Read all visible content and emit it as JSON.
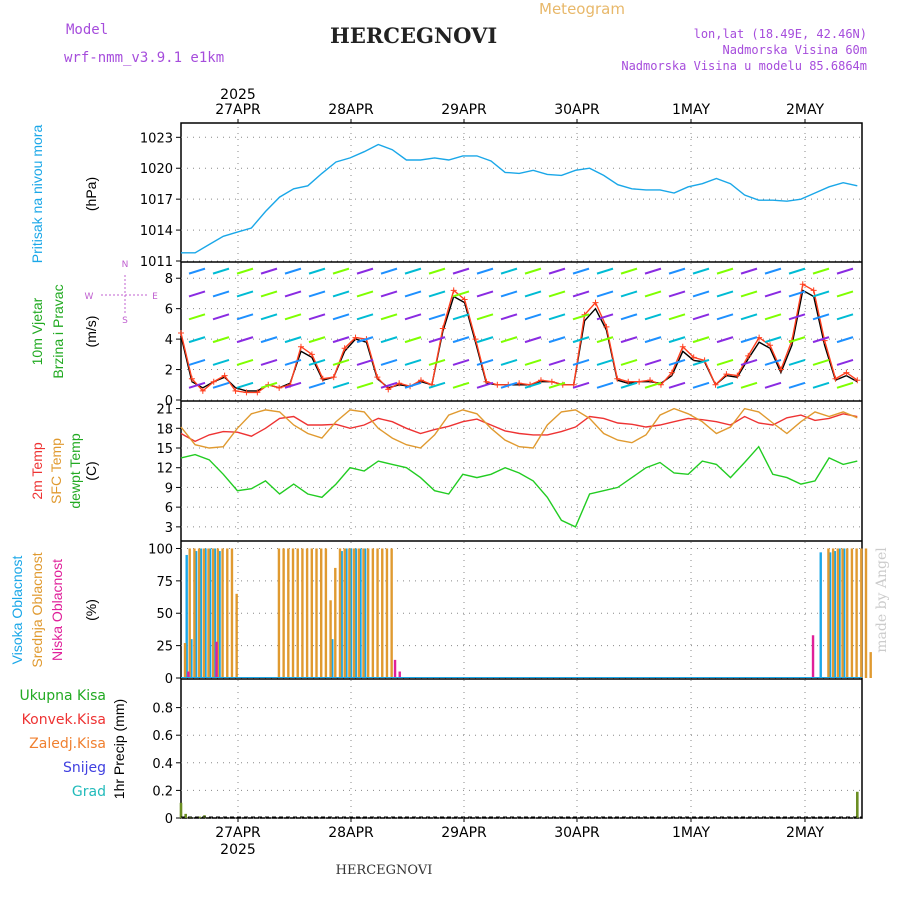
{
  "header": {
    "model_label": "Model",
    "model_name": "wrf-nmm_v3.9.1  e1km",
    "title": "HERCEGNOVI",
    "subtitle": "Meteogram",
    "coords": "lon,lat (18.49E, 42.46N)",
    "elevation": "Nadmorska Visina 60m",
    "model_elevation": "Nadmorska Visina u modelu 85.6864m",
    "footer": "HERCEGNOVI",
    "credit": "made by Angel",
    "year": "2025",
    "colors": {
      "model": "#a64ddc",
      "subtitle": "#e8b86a",
      "info": "#a64ddc",
      "credit": "#cccccc"
    }
  },
  "chart_data": [
    {
      "type": "line",
      "name": "pressure",
      "ylabel_lines": [
        "Pritisak na nivou mora",
        "(hPa)"
      ],
      "ylabel_colors": [
        "#1aa7e8",
        "#000000"
      ],
      "ylim": [
        1011,
        1024
      ],
      "yticks": [
        1011,
        1014,
        1017,
        1020,
        1023
      ],
      "grid": true,
      "x_hours": [
        0,
        3,
        6,
        9,
        12,
        15,
        18,
        21,
        24,
        27,
        30,
        33,
        36,
        39,
        42,
        45,
        48,
        51,
        54,
        57,
        60,
        63,
        66,
        69,
        72,
        75,
        78,
        81,
        84,
        87,
        90,
        93,
        96,
        99,
        102,
        105,
        108,
        111,
        114,
        117,
        120,
        123,
        126,
        129,
        132,
        135,
        138,
        141,
        144
      ],
      "series": [
        {
          "color": "#1aa7e8",
          "values": [
            1011.8,
            1011.8,
            1012.6,
            1013.4,
            1013.8,
            1014.2,
            1015.8,
            1017.2,
            1018.0,
            1018.3,
            1019.5,
            1020.6,
            1021.0,
            1021.6,
            1022.3,
            1021.8,
            1020.8,
            1020.8,
            1021.0,
            1020.8,
            1021.2,
            1021.2,
            1020.7,
            1019.6,
            1019.5,
            1019.8,
            1019.4,
            1019.3,
            1019.8,
            1020.0,
            1019.3,
            1018.4,
            1018.0,
            1017.9,
            1017.9,
            1017.6,
            1018.2,
            1018.5,
            1019.0,
            1018.5,
            1017.4,
            1016.9,
            1016.9,
            1016.8,
            1017.0,
            1017.6,
            1018.2,
            1018.6,
            1018.3
          ]
        }
      ]
    },
    {
      "type": "line",
      "name": "wind",
      "ylabel_lines": [
        "10m Vjetar",
        "Brzina i Pravac",
        "(m/s)"
      ],
      "ylabel_colors": [
        "#22aa22",
        "#22aa22",
        "#000000"
      ],
      "compass": {
        "n": "N",
        "s": "S",
        "w": "W",
        "e": "E",
        "color": "#c060d0"
      },
      "ylim": [
        0,
        9
      ],
      "yticks": [
        0,
        2,
        4,
        6,
        8
      ],
      "grid": true,
      "series": [
        {
          "color": "#000000",
          "values": [
            4.2,
            1.2,
            0.8,
            1.2,
            1.5,
            0.8,
            0.6,
            0.6,
            1.0,
            0.8,
            1.1,
            3.2,
            2.8,
            1.3,
            1.5,
            3.2,
            4.0,
            3.8,
            1.4,
            0.8,
            1.0,
            0.9,
            1.2,
            1.0,
            4.5,
            6.8,
            6.4,
            3.8,
            1.1,
            1.0,
            1.0,
            1.0,
            1.0,
            1.2,
            1.2,
            1.0,
            1.0,
            5.2,
            6.0,
            4.6,
            1.3,
            1.1,
            1.2,
            1.2,
            1.1,
            1.6,
            3.2,
            2.6,
            2.5,
            1.0,
            1.6,
            1.5,
            2.7,
            3.8,
            3.4,
            1.8,
            3.6,
            7.2,
            6.8,
            3.6,
            1.3,
            1.6,
            1.2
          ]
        },
        {
          "color": "#ff4020",
          "values": [
            4.4,
            1.4,
            0.6,
            1.2,
            1.6,
            0.6,
            0.5,
            0.5,
            1.0,
            0.8,
            1.0,
            3.5,
            3.0,
            1.4,
            1.5,
            3.4,
            4.1,
            4.0,
            1.5,
            0.7,
            1.1,
            0.9,
            1.3,
            1.0,
            4.7,
            7.2,
            6.6,
            4.0,
            1.2,
            1.0,
            1.0,
            1.1,
            1.0,
            1.3,
            1.2,
            1.0,
            1.0,
            5.6,
            6.4,
            4.8,
            1.4,
            1.2,
            1.2,
            1.3,
            1.0,
            1.8,
            3.5,
            2.8,
            2.6,
            1.0,
            1.7,
            1.6,
            2.9,
            4.1,
            3.6,
            2.0,
            3.9,
            7.6,
            7.2,
            3.9,
            1.4,
            1.8,
            1.3
          ]
        }
      ]
    },
    {
      "type": "line",
      "name": "temperature",
      "ylabel_lines": [
        "2m Temp",
        "SFC Temp",
        "dewpt Temp",
        "(C)"
      ],
      "ylabel_colors": [
        "#ee3333",
        "#e09a30",
        "#22aa22",
        "#000000"
      ],
      "ylim": [
        1,
        22
      ],
      "yticks": [
        3,
        6,
        9,
        12,
        15,
        18,
        21
      ],
      "grid": true,
      "x_hours": [
        0,
        3,
        6,
        9,
        12,
        15,
        18,
        21,
        24,
        27,
        30,
        33,
        36,
        39,
        42,
        45,
        48,
        51,
        54,
        57,
        60,
        63,
        66,
        69,
        72,
        75,
        78,
        81,
        84,
        87,
        90,
        93,
        96,
        99,
        102,
        105,
        108,
        111,
        114,
        117,
        120,
        123,
        126,
        129,
        132,
        135,
        138,
        141,
        144
      ],
      "series": [
        {
          "color": "#ee3333",
          "values": [
            17.2,
            16.0,
            17.0,
            17.5,
            17.4,
            16.8,
            18.0,
            19.5,
            19.8,
            18.5,
            18.5,
            18.6,
            18.0,
            18.5,
            19.5,
            19.0,
            18.0,
            17.2,
            17.8,
            18.3,
            19.0,
            19.4,
            18.5,
            17.6,
            17.2,
            17.0,
            17.0,
            17.5,
            18.2,
            19.8,
            19.5,
            18.8,
            18.6,
            18.2,
            18.5,
            19.0,
            19.5,
            19.3,
            19.0,
            18.5,
            19.8,
            18.8,
            18.5,
            19.6,
            20.0,
            19.2,
            19.5,
            20.2,
            19.8
          ]
        },
        {
          "color": "#e09a30",
          "values": [
            18.2,
            15.5,
            15.0,
            15.2,
            18.0,
            20.2,
            20.8,
            20.5,
            18.5,
            17.2,
            16.5,
            19.0,
            20.8,
            20.5,
            18.0,
            16.5,
            15.5,
            15.0,
            17.0,
            20.0,
            20.8,
            20.2,
            18.0,
            16.2,
            15.2,
            15.0,
            18.5,
            20.5,
            20.8,
            19.5,
            17.2,
            16.2,
            15.8,
            17.0,
            20.0,
            21.0,
            20.2,
            19.0,
            17.2,
            18.2,
            21.0,
            20.5,
            18.8,
            17.2,
            19.0,
            20.5,
            19.8,
            20.5,
            19.6
          ]
        },
        {
          "color": "#22cc22",
          "values": [
            13.5,
            14.0,
            13.2,
            11.0,
            8.5,
            8.8,
            10.0,
            8.0,
            9.5,
            8.0,
            7.5,
            9.5,
            12.0,
            11.5,
            13.0,
            12.5,
            12.0,
            10.5,
            8.5,
            8.0,
            11.0,
            10.5,
            11.0,
            12.0,
            11.2,
            10.0,
            7.5,
            4.0,
            3.0,
            8.0,
            8.5,
            9.0,
            10.5,
            12.0,
            12.8,
            11.2,
            11.0,
            13.0,
            12.5,
            10.5,
            12.8,
            15.2,
            11.0,
            10.5,
            9.5,
            10.0,
            13.5,
            12.5,
            13.0
          ]
        }
      ]
    },
    {
      "type": "bar",
      "name": "cloud",
      "ylabel_lines": [
        "Visoka Oblacnost",
        "Srednja Oblacnost",
        "Niska Oblacnost",
        "(%)"
      ],
      "ylabel_colors": [
        "#1aa7e8",
        "#e09a30",
        "#e0209a",
        "#000000"
      ],
      "ylim": [
        0,
        105
      ],
      "yticks": [
        0,
        25,
        50,
        75,
        100
      ],
      "grid": true,
      "series": [
        {
          "name": "high",
          "color": "#1aa7e8",
          "values": [
            0,
            95,
            30,
            98,
            100,
            100,
            100,
            100,
            98,
            0,
            0,
            0,
            0,
            0,
            0,
            0,
            0,
            0,
            0,
            0,
            0,
            0,
            0,
            0,
            0,
            0,
            0,
            0,
            0,
            0,
            0,
            0,
            30,
            0,
            98,
            100,
            100,
            100,
            100,
            100,
            0,
            0,
            0,
            0,
            0,
            0,
            0,
            0,
            0,
            0,
            0,
            0,
            0,
            0,
            0,
            0,
            0,
            0,
            0,
            0,
            0,
            0,
            0,
            0,
            0,
            0,
            0,
            0,
            0,
            0,
            0,
            0,
            0,
            0,
            0,
            0,
            0,
            0,
            0,
            0,
            0,
            0,
            0,
            0,
            0,
            0,
            0,
            0,
            0,
            0,
            0,
            0,
            0,
            0,
            0,
            0,
            0,
            0,
            0,
            0,
            0,
            0,
            0,
            0,
            0,
            0,
            0,
            0,
            0,
            0,
            0,
            0,
            0,
            0,
            0,
            0,
            0,
            0,
            0,
            0,
            0,
            0,
            0,
            0,
            0,
            0,
            0,
            0,
            0,
            0,
            0,
            0,
            0,
            0,
            0,
            0,
            97,
            0,
            97,
            98,
            100,
            100,
            0,
            0,
            0,
            0,
            0
          ]
        },
        {
          "name": "mid",
          "color": "#e09a30",
          "values": [
            27,
            100,
            100,
            100,
            100,
            100,
            100,
            100,
            100,
            100,
            100,
            65,
            0,
            0,
            0,
            0,
            0,
            0,
            0,
            0,
            100,
            100,
            100,
            100,
            100,
            100,
            100,
            100,
            100,
            100,
            100,
            60,
            85,
            100,
            100,
            100,
            100,
            100,
            100,
            100,
            100,
            100,
            100,
            100,
            100,
            0,
            0,
            0,
            0,
            0,
            0,
            0,
            0,
            0,
            0,
            0,
            0,
            0,
            0,
            0,
            0,
            0,
            0,
            0,
            0,
            0,
            0,
            0,
            0,
            0,
            0,
            0,
            0,
            0,
            0,
            0,
            0,
            0,
            0,
            0,
            0,
            0,
            0,
            0,
            0,
            0,
            0,
            0,
            0,
            0,
            0,
            0,
            0,
            0,
            0,
            0,
            0,
            0,
            0,
            0,
            0,
            0,
            0,
            0,
            0,
            0,
            0,
            0,
            0,
            0,
            0,
            0,
            0,
            0,
            0,
            0,
            0,
            0,
            0,
            0,
            0,
            0,
            0,
            0,
            0,
            0,
            0,
            0,
            0,
            0,
            0,
            0,
            0,
            0,
            0,
            0,
            0,
            100,
            100,
            100,
            100,
            100,
            100,
            100,
            100,
            100,
            20
          ]
        },
        {
          "name": "low",
          "color": "#e0209a",
          "values": [
            0,
            0,
            5,
            0,
            0,
            0,
            0,
            0,
            28,
            0,
            0,
            0,
            0,
            0,
            0,
            0,
            0,
            0,
            0,
            0,
            0,
            0,
            0,
            0,
            0,
            0,
            0,
            0,
            0,
            0,
            0,
            0,
            0,
            0,
            0,
            0,
            0,
            0,
            0,
            0,
            0,
            0,
            0,
            0,
            0,
            0,
            14,
            5,
            0,
            0,
            0,
            0,
            0,
            0,
            0,
            0,
            0,
            0,
            0,
            0,
            0,
            0,
            0,
            0,
            0,
            0,
            0,
            0,
            0,
            0,
            0,
            0,
            0,
            0,
            0,
            0,
            0,
            0,
            0,
            0,
            0,
            0,
            0,
            0,
            0,
            0,
            0,
            0,
            0,
            0,
            0,
            0,
            0,
            0,
            0,
            0,
            0,
            0,
            0,
            0,
            0,
            0,
            0,
            0,
            0,
            0,
            0,
            0,
            0,
            0,
            0,
            0,
            0,
            0,
            0,
            0,
            0,
            0,
            0,
            0,
            0,
            0,
            0,
            0,
            0,
            0,
            0,
            0,
            0,
            0,
            0,
            0,
            0,
            0,
            0,
            33,
            0,
            0,
            0,
            0,
            0,
            0,
            0,
            0,
            0,
            0,
            0
          ]
        }
      ]
    },
    {
      "type": "bar",
      "name": "precip",
      "ylabel_lines": [
        "1hr Precip (mm)"
      ],
      "ylabel_colors": [
        "#000000"
      ],
      "legend": [
        {
          "label": "Ukupna  Kisa",
          "color": "#22aa22"
        },
        {
          "label": "Konvek.Kisa",
          "color": "#ee3333"
        },
        {
          "label": "Zaledj.Kisa",
          "color": "#f08030"
        },
        {
          "label": "Snijeg",
          "color": "#4040e0"
        },
        {
          "label": "Grad",
          "color": "#22bbbb"
        }
      ],
      "ylim": [
        0,
        1.0
      ],
      "yticks": [
        0,
        0.2,
        0.4,
        0.6,
        0.8
      ],
      "tick_labels": [
        "0",
        "0.2",
        "0.4",
        "0.6",
        "0.8"
      ],
      "grid": true,
      "x_hours": [
        0,
        1,
        2,
        4,
        5,
        144
      ],
      "values": [
        0.11,
        0.03,
        0.01,
        0.01,
        0.02,
        0.19
      ],
      "color": "#6b8e23"
    }
  ],
  "x_axis": {
    "start_hour_offset": 10,
    "hour_span": 145,
    "dates": [
      "27APR",
      "28APR",
      "29APR",
      "30APR",
      "1MAY",
      "2MAY"
    ]
  }
}
